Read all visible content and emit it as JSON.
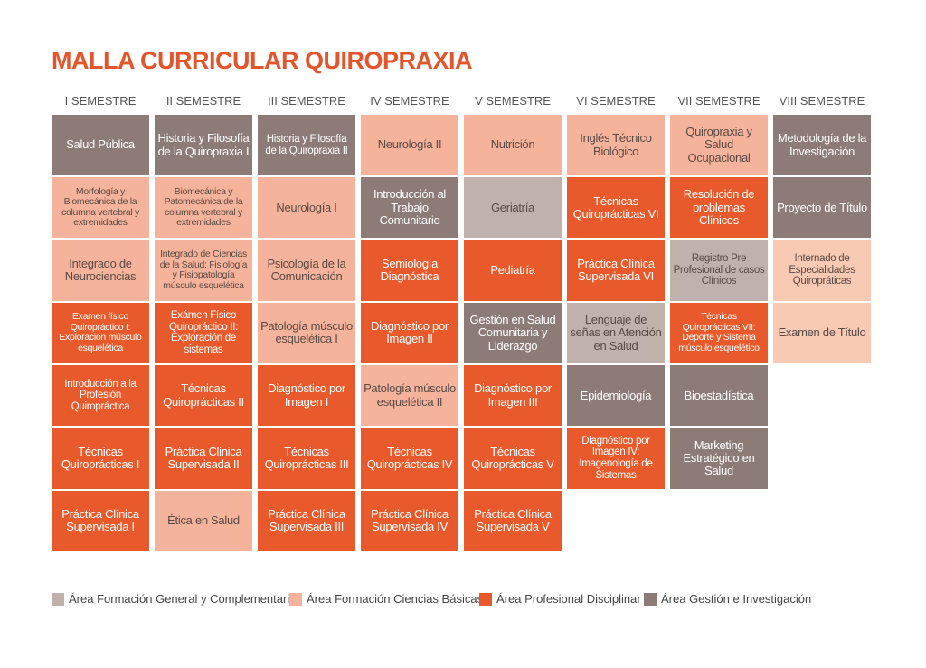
{
  "header": {
    "title": "MALLA CURRICULAR QUIROPRAXIA"
  },
  "semesters": [
    {
      "label": "I SEMESTRE",
      "courses": [
        {
          "name": "Salud Pública",
          "color": "#8c7b76"
        },
        {
          "name": "Morfología y Biomecánica de la columna vertebral y extremidades",
          "color": "#f5b39b"
        },
        {
          "name": "Integrado de Neurociencias",
          "color": "#f5b39b"
        },
        {
          "name": "Examen físico Quiropráctico I: Exploración músculo esquelética",
          "color": "#e85a2b"
        },
        {
          "name": "Introducción a la Profesión Quiropráctica",
          "color": "#e85a2b"
        },
        {
          "name": "Técnicas Quiroprácticas I",
          "color": "#e85a2b"
        },
        {
          "name": "Práctica Clínica Supervisada I",
          "color": "#e85a2b"
        }
      ]
    },
    {
      "label": "II SEMESTRE",
      "courses": [
        {
          "name": "Historia y Filosofía de la Quiropraxia I",
          "color": "#8c7b76"
        },
        {
          "name": "Biomecánica y Patomecánica de la columna vertebral y extremidades",
          "color": "#f5b39b"
        },
        {
          "name": "Integrado de Ciencias de la Salud: Fisiología y Fisiopatología músculo esquelética",
          "color": "#f5b39b"
        },
        {
          "name": "Exámen Físico Quiropráctico II: Exploración de sistemas",
          "color": "#e85a2b"
        },
        {
          "name": "Técnicas Quiroprácticas II",
          "color": "#e85a2b"
        },
        {
          "name": "Práctica Clinica Supervisada II",
          "color": "#e85a2b"
        },
        {
          "name": "Ética en Salud",
          "color": "#f5b39b"
        }
      ]
    },
    {
      "label": "III SEMESTRE",
      "courses": [
        {
          "name": "Historia y Filosofía de la Quiropraxia II",
          "color": "#8c7b76"
        },
        {
          "name": "Neurología I",
          "color": "#f5b39b"
        },
        {
          "name": "Psicología de la Comunicación",
          "color": "#f5b39b"
        },
        {
          "name": "Patología músculo esquelética I",
          "color": "#f5b39b"
        },
        {
          "name": "Diagnóstico por Imagen I",
          "color": "#e85a2b"
        },
        {
          "name": "Técnicas Quiroprácticas III",
          "color": "#e85a2b"
        },
        {
          "name": "Práctica Clínica Supervisada III",
          "color": "#e85a2b"
        }
      ]
    },
    {
      "label": "IV SEMESTRE",
      "courses": [
        {
          "name": "Neurología II",
          "color": "#f5b39b"
        },
        {
          "name": "Introducción al Trabajo Comunitario",
          "color": "#8c7b76"
        },
        {
          "name": "Semiología Diagnóstica",
          "color": "#e85a2b"
        },
        {
          "name": "Diagnóstico por Imagen II",
          "color": "#e85a2b"
        },
        {
          "name": "Patología músculo esquelética II",
          "color": "#f5b39b"
        },
        {
          "name": "Técnicas Quiroprácticas IV",
          "color": "#e85a2b"
        },
        {
          "name": "Práctica Clínica Supervisada IV",
          "color": "#e85a2b"
        }
      ]
    },
    {
      "label": "V SEMESTRE",
      "courses": [
        {
          "name": "Nutrición",
          "color": "#f5b39b"
        },
        {
          "name": "Geriatría",
          "color": "#c0b1ad"
        },
        {
          "name": "Pediatría",
          "color": "#e85a2b"
        },
        {
          "name": "Gestión en Salud Comunitaria y Liderazgo",
          "color": "#8c7b76"
        },
        {
          "name": "Diagnóstico por Imagen III",
          "color": "#e85a2b"
        },
        {
          "name": "Técnicas Quiroprácticas V",
          "color": "#e85a2b"
        },
        {
          "name": "Práctica Clínica Supervisada V",
          "color": "#e85a2b"
        }
      ]
    },
    {
      "label": "VI SEMESTRE",
      "courses": [
        {
          "name": "Inglés Técnico Biológico",
          "color": "#f5b39b"
        },
        {
          "name": "Técnicas Quiroprácticas VI",
          "color": "#e85a2b"
        },
        {
          "name": "Práctica Clínica Supervisada VI",
          "color": "#e85a2b"
        },
        {
          "name": "Lenguaje de señas en Atención en Salud",
          "color": "#c0b1ad"
        },
        {
          "name": "Epidemiología",
          "color": "#8c7b76"
        },
        {
          "name": "Diagnóstico por Imagen IV: Imagenología de Sistemas",
          "color": "#e85a2b"
        }
      ]
    },
    {
      "label": "VII SEMESTRE",
      "courses": [
        {
          "name": "Quiropraxia y Salud Ocupacional",
          "color": "#f5b39b"
        },
        {
          "name": "Resolución de problemas Clínicos",
          "color": "#e85a2b"
        },
        {
          "name": "Registro Pre Profesional de casos Clínicos",
          "color": "#c0b1ad"
        },
        {
          "name": "Técnicas Quiroprácticas VII: Deporte y Sistema músculo esquelético",
          "color": "#e85a2b"
        },
        {
          "name": "Bioestadística",
          "color": "#8c7b76"
        },
        {
          "name": "Marketing Estratégico en Salud",
          "color": "#8c7b76"
        }
      ]
    },
    {
      "label": "VIII SEMESTRE",
      "courses": [
        {
          "name": "Metodología de la Investigación",
          "color": "#8c7b76"
        },
        {
          "name": "Proyecto de Título",
          "color": "#8c7b76"
        },
        {
          "name": "Internado de Especialidades Quiropráticas",
          "color": "#f8c9b3"
        },
        {
          "name": "Examen de Título",
          "color": "#f8c9b3"
        }
      ]
    }
  ],
  "legend": [
    {
      "label": "Área Formación General y Complementaria",
      "color": "#c0b1ad"
    },
    {
      "label": "Área Formación Ciencias Básicas",
      "color": "#f5b39b"
    },
    {
      "label": "Área Profesional Disciplinar",
      "color": "#e85a2b"
    },
    {
      "label": "Área Gestión e Investigación",
      "color": "#8c7b76"
    }
  ]
}
